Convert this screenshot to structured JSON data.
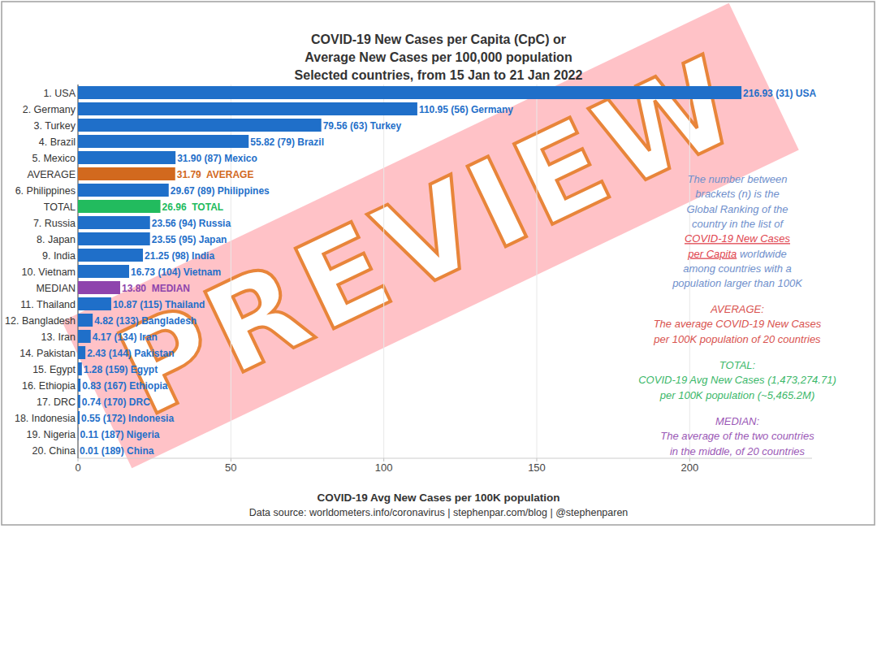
{
  "chart_data": {
    "type": "bar",
    "orientation": "horizontal",
    "title": [
      "COVID-19 New Cases per Capita (CpC) or",
      "Average New Cases per 100,000 population",
      "Selected countries, from 15 Jan to 21 Jan 2022"
    ],
    "x_label": "COVID-19 Avg New Cases per 100K population",
    "source": "Data source: worldometers.info/coronavirus | stephenpar.com/blog | @stephenparen",
    "categories": [
      "1. USA",
      "2. Germany",
      "3. Turkey",
      "4. Brazil",
      "5. Mexico",
      "AVERAGE",
      "6. Philippines",
      "TOTAL",
      "7. Russia",
      "8. Japan",
      "9. India",
      "10. Vietnam",
      "MEDIAN",
      "11. Thailand",
      "12. Bangladesh",
      "13. Iran",
      "14. Pakistan",
      "15. Egypt",
      "16. Ethiopia",
      "17. DRC",
      "18. Indonesia",
      "19. Nigeria",
      "20. China"
    ],
    "values": [
      216.93,
      110.95,
      79.56,
      55.82,
      31.9,
      31.79,
      29.67,
      26.96,
      23.56,
      23.55,
      21.25,
      16.73,
      13.8,
      10.87,
      4.82,
      4.17,
      2.43,
      1.28,
      0.83,
      0.74,
      0.55,
      0.11,
      0.01
    ],
    "value_labels": [
      "216.93 (31) USA",
      "110.95 (56) Germany",
      "79.56 (63) Turkey",
      "55.82 (79) Brazil",
      "31.90 (87) Mexico",
      "31.79  AVERAGE",
      "29.67 (89) Philippines",
      "26.96  TOTAL",
      "23.56 (94) Russia",
      "23.55 (95) Japan",
      "21.25 (98) India",
      "16.73 (104) Vietnam",
      "13.80  MEDIAN",
      "10.87 (115) Thailand",
      "4.82 (133) Bangladesh",
      "4.17 (134) Iran",
      "2.43 (144) Pakistan",
      "1.28 (159) Egypt",
      "0.83 (167) Ethiopia",
      "0.74 (170) DRC",
      "0.55 (172) Indonesia",
      "0.11 (187) Nigeria",
      "0.01 (189) China"
    ],
    "colors": [
      "#1f6fc9",
      "#1f6fc9",
      "#1f6fc9",
      "#1f6fc9",
      "#1f6fc9",
      "#d2691e",
      "#1f6fc9",
      "#22bb5e",
      "#1f6fc9",
      "#1f6fc9",
      "#1f6fc9",
      "#1f6fc9",
      "#8e44ad",
      "#1f6fc9",
      "#1f6fc9",
      "#1f6fc9",
      "#1f6fc9",
      "#1f6fc9",
      "#1f6fc9",
      "#1f6fc9",
      "#1f6fc9",
      "#1f6fc9",
      "#1f6fc9"
    ],
    "xlim": [
      0,
      240
    ],
    "xticks": [
      0,
      50,
      100,
      150,
      200
    ],
    "grid": true,
    "data_labels": true,
    "annotations": [
      {
        "color": "#6f8fcc",
        "lines": [
          [
            {
              "text": "The number between"
            }
          ],
          [
            {
              "text": "brackets (n) is the"
            }
          ],
          [
            {
              "text": "Global Ranking of the"
            }
          ],
          [
            {
              "text": "country in the list of"
            }
          ],
          [
            {
              "text": "COVID-19 New Cases",
              "link": true
            }
          ],
          [
            {
              "text": "per Capita",
              "link": true
            },
            {
              "text": " worldwide"
            }
          ],
          [
            {
              "text": "among countries with a"
            }
          ],
          [
            {
              "text": "population larger than 100K"
            }
          ]
        ]
      },
      {
        "color": "#d9534f",
        "lines": [
          [
            {
              "text": "AVERAGE:"
            }
          ],
          [
            {
              "text": "The average COVID-19 New Cases"
            }
          ],
          [
            {
              "text": "per 100K population of 20 countries"
            }
          ]
        ]
      },
      {
        "color": "#3cb86a",
        "lines": [
          [
            {
              "text": "TOTAL:"
            }
          ],
          [
            {
              "text": "COVID-19 Avg New Cases (1,473,274.71)"
            }
          ],
          [
            {
              "text": "per 100K population (~5,465.2M)"
            }
          ]
        ]
      },
      {
        "color": "#9b59b6",
        "lines": [
          [
            {
              "text": "MEDIAN:"
            }
          ],
          [
            {
              "text": "The average of the two countries"
            }
          ],
          [
            {
              "text": "in the middle, of 20 countries"
            }
          ]
        ]
      }
    ]
  },
  "watermark": "PREVIEW"
}
